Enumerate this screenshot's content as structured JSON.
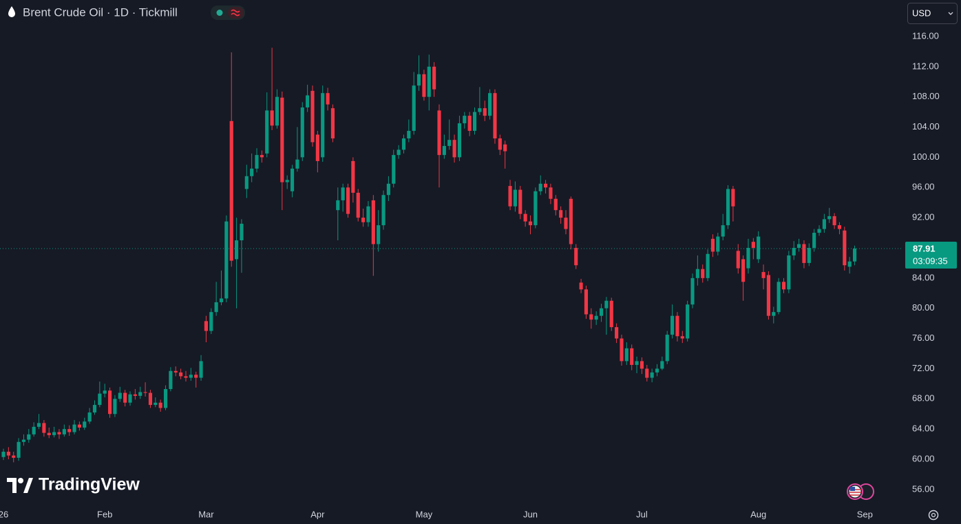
{
  "header": {
    "title": "Brent Crude Oil · 1D · Tickmill",
    "currency": "USD"
  },
  "brand": "TradingView",
  "chart_data": {
    "type": "candlestick",
    "open": [
      60.3,
      61.0,
      60.5,
      60.2,
      62.3,
      62.6,
      63.3,
      64.3,
      64.8,
      63.5,
      63.2,
      63.6,
      63.3,
      64.0,
      63.6,
      64.6,
      64.2,
      65.0,
      66.2,
      67.2,
      68.7,
      69.1,
      66.0,
      68.0,
      68.8,
      67.5,
      68.6,
      68.4,
      68.9,
      68.8,
      67.2,
      67.5,
      66.8,
      69.3,
      71.7,
      71.5,
      71.0,
      70.8,
      71.2,
      70.8,
      78.3,
      77.0,
      79.5,
      80.8,
      81.3,
      104.8,
      86.5,
      89.0,
      95.8,
      97.5,
      98.5,
      100.3,
      100.5,
      106.2,
      104.2,
      107.9,
      96.7,
      95.5,
      98.5,
      100.0,
      106.6,
      108.8,
      103.0,
      100.0,
      108.5,
      106.5,
      93.0,
      94.3,
      96.0,
      99.5,
      95.3,
      92.0,
      91.4,
      94.3,
      88.5,
      91.0,
      95.0,
      96.5,
      100.3,
      101.0,
      102.5,
      103.5,
      109.5,
      111.0,
      108.0,
      112.0,
      106.2,
      100.3,
      101.5,
      102.3,
      100.0,
      104.5,
      105.5,
      103.5,
      106.0,
      106.5,
      105.5,
      108.5,
      102.5,
      101.7,
      96.2,
      93.5,
      95.7,
      92.5,
      91.5,
      91.0,
      95.5,
      96.5,
      96.0,
      94.5,
      93.0,
      92.0,
      94.5,
      88.0,
      83.4,
      82.5,
      79.2,
      78.5,
      79.0,
      80.0,
      81.0,
      77.5,
      76.0,
      73.0,
      74.7,
      72.5,
      73.0,
      72.0,
      70.8,
      71.5,
      72.0,
      73.0,
      76.5,
      79.0,
      76.3,
      76.0,
      80.5,
      84.0,
      85.2,
      84.0,
      89.2,
      87.5,
      89.5,
      91.0,
      95.8,
      87.6,
      86.5,
      85.3,
      88.8,
      86.5,
      84.8,
      84.4,
      79.0,
      79.5,
      83.5,
      82.5,
      87.0,
      88.0,
      88.5,
      86.0,
      88.0,
      90.0,
      90.5,
      91.8,
      92.2,
      91.0,
      90.3,
      85.5,
      86.2
    ],
    "high": [
      61.4,
      61.6,
      61.0,
      62.8,
      63.3,
      64.0,
      64.9,
      66.0,
      65.2,
      64.2,
      64.3,
      64.0,
      64.6,
      64.5,
      65.2,
      65.0,
      65.5,
      66.8,
      67.8,
      70.3,
      70.0,
      69.5,
      68.5,
      69.6,
      69.2,
      69.0,
      69.3,
      69.6,
      70.2,
      69.2,
      68.2,
      67.9,
      69.8,
      72.2,
      72.3,
      72.0,
      71.7,
      72.1,
      71.6,
      73.8,
      79.0,
      80.0,
      83.5,
      85.0,
      92.3,
      113.9,
      92.0,
      91.8,
      99.0,
      100.5,
      101.2,
      100.9,
      108.6,
      114.5,
      109.0,
      108.7,
      97.6,
      99.0,
      104.0,
      107.3,
      109.6,
      109.5,
      103.5,
      109.5,
      109.2,
      107.0,
      96.0,
      96.5,
      96.5,
      100.0,
      95.8,
      93.2,
      94.2,
      95.0,
      93.0,
      95.6,
      97.5,
      101.0,
      101.6,
      103.0,
      105.0,
      111.3,
      113.5,
      111.6,
      113.6,
      112.6,
      107.0,
      103.0,
      105.0,
      103.0,
      105.5,
      106.0,
      106.0,
      106.6,
      109.3,
      107.5,
      109.0,
      109.0,
      103.0,
      102.2,
      97.0,
      96.8,
      96.2,
      93.0,
      92.3,
      96.0,
      97.6,
      97.0,
      96.5,
      95.0,
      93.5,
      93.0,
      94.8,
      88.5,
      83.9,
      83.0,
      80.0,
      79.6,
      80.6,
      81.5,
      81.4,
      78.0,
      76.5,
      75.5,
      75.2,
      73.6,
      73.5,
      72.5,
      72.0,
      72.6,
      73.6,
      77.0,
      80.5,
      79.5,
      77.0,
      81.0,
      84.6,
      87.0,
      85.8,
      87.8,
      89.8,
      90.0,
      92.5,
      96.3,
      96.2,
      88.5,
      87.0,
      89.2,
      89.3,
      90.2,
      85.8,
      84.9,
      80.2,
      84.0,
      84.0,
      87.6,
      88.9,
      89.2,
      89.0,
      88.6,
      90.5,
      91.0,
      92.5,
      93.3,
      92.6,
      91.4,
      90.8,
      86.8,
      88.3
    ],
    "low": [
      59.9,
      60.0,
      59.6,
      59.8,
      61.8,
      62.2,
      63.0,
      64.0,
      63.0,
      62.8,
      62.9,
      62.7,
      63.0,
      63.1,
      63.3,
      63.8,
      63.9,
      64.7,
      65.9,
      66.9,
      68.2,
      65.5,
      65.6,
      67.6,
      67.0,
      67.1,
      67.9,
      68.0,
      68.3,
      66.8,
      66.9,
      66.3,
      66.5,
      69.0,
      71.0,
      70.6,
      70.3,
      70.4,
      69.5,
      70.4,
      75.5,
      76.6,
      79.0,
      80.4,
      80.8,
      85.5,
      80.0,
      84.7,
      94.6,
      96.7,
      98.0,
      99.3,
      100.0,
      103.6,
      103.8,
      93.0,
      95.8,
      94.7,
      98.1,
      99.5,
      106.0,
      101.4,
      98.0,
      99.4,
      106.2,
      102.0,
      89.0,
      92.8,
      92.0,
      94.0,
      91.5,
      90.8,
      90.8,
      84.3,
      87.5,
      90.4,
      94.2,
      96.0,
      99.8,
      100.5,
      102.0,
      103.0,
      108.8,
      107.5,
      106.2,
      108.0,
      96.0,
      99.8,
      101.0,
      99.3,
      99.5,
      103.8,
      102.8,
      103.0,
      105.6,
      104.8,
      105.0,
      101.8,
      100.3,
      98.5,
      93.0,
      92.8,
      91.8,
      90.8,
      89.8,
      90.6,
      95.0,
      95.2,
      93.8,
      92.3,
      91.2,
      89.8,
      87.8,
      85.2,
      82.0,
      78.6,
      77.3,
      77.8,
      78.2,
      76.5,
      77.0,
      75.4,
      72.4,
      72.5,
      71.8,
      71.4,
      71.3,
      70.3,
      70.2,
      71.0,
      71.8,
      72.6,
      76.0,
      75.6,
      75.4,
      75.6,
      80.0,
      83.0,
      83.4,
      83.6,
      86.8,
      87.0,
      89.0,
      90.5,
      91.5,
      84.6,
      81.0,
      84.6,
      86.5,
      86.0,
      82.5,
      78.5,
      78.0,
      79.2,
      82.0,
      82.0,
      86.4,
      87.5,
      85.3,
      85.6,
      87.5,
      89.6,
      90.0,
      91.3,
      90.5,
      89.8,
      85.0,
      84.6,
      85.7
    ],
    "close": [
      61.0,
      60.5,
      60.2,
      62.3,
      62.6,
      63.3,
      64.3,
      64.8,
      63.5,
      63.2,
      63.6,
      63.3,
      64.0,
      63.6,
      64.6,
      64.2,
      65.0,
      66.2,
      67.2,
      68.7,
      69.1,
      66.0,
      68.0,
      68.8,
      67.5,
      68.6,
      68.4,
      68.9,
      68.8,
      67.2,
      67.5,
      66.8,
      69.3,
      71.7,
      71.5,
      71.0,
      70.8,
      71.2,
      70.8,
      73.0,
      77.0,
      79.5,
      80.8,
      81.3,
      91.5,
      86.3,
      89.0,
      91.2,
      97.5,
      98.5,
      100.3,
      100.0,
      106.2,
      104.2,
      108.0,
      96.7,
      97.0,
      98.5,
      99.7,
      106.6,
      108.2,
      102.0,
      99.5,
      108.5,
      107.0,
      102.5,
      94.3,
      96.0,
      92.5,
      95.3,
      92.0,
      91.4,
      93.5,
      88.5,
      91.0,
      95.0,
      96.5,
      100.3,
      101.0,
      102.5,
      103.5,
      109.5,
      111.0,
      108.0,
      112.0,
      109.0,
      100.3,
      101.5,
      102.3,
      100.0,
      104.5,
      105.5,
      103.5,
      106.0,
      106.5,
      105.5,
      108.5,
      102.5,
      101.0,
      100.8,
      93.5,
      95.7,
      92.5,
      91.5,
      91.0,
      95.5,
      96.5,
      96.0,
      94.5,
      93.0,
      92.0,
      90.5,
      88.5,
      85.7,
      82.5,
      79.2,
      78.5,
      79.0,
      80.0,
      81.0,
      77.5,
      76.0,
      73.0,
      74.7,
      72.5,
      73.0,
      72.0,
      70.8,
      71.5,
      72.0,
      73.0,
      76.5,
      79.0,
      76.3,
      76.0,
      80.5,
      84.0,
      85.2,
      84.0,
      87.2,
      87.5,
      89.5,
      91.0,
      95.8,
      93.5,
      85.3,
      83.5,
      88.0,
      88.0,
      89.5,
      84.0,
      79.0,
      79.5,
      83.5,
      82.5,
      87.0,
      88.0,
      88.5,
      86.0,
      88.0,
      90.0,
      90.5,
      91.8,
      92.2,
      91.0,
      90.5,
      85.7,
      86.2,
      87.91
    ],
    "up_color": "#089981",
    "down_color": "#f23645",
    "ylim": [
      53.8,
      120.83
    ],
    "yticks": [
      {
        "value": 56,
        "label": "56.00"
      },
      {
        "value": 60,
        "label": "60.00"
      },
      {
        "value": 64,
        "label": "64.00"
      },
      {
        "value": 68,
        "label": "68.00"
      },
      {
        "value": 72,
        "label": "72.00"
      },
      {
        "value": 76,
        "label": "76.00"
      },
      {
        "value": 80,
        "label": "80.00"
      },
      {
        "value": 84,
        "label": "84.00"
      },
      {
        "value": 88,
        "label": "88.00"
      },
      {
        "value": 92,
        "label": "92.00"
      },
      {
        "value": 96,
        "label": "96.00"
      },
      {
        "value": 100,
        "label": "100.00"
      },
      {
        "value": 104,
        "label": "104.00"
      },
      {
        "value": 108,
        "label": "108.00"
      },
      {
        "value": 112,
        "label": "112.00"
      },
      {
        "value": 116,
        "label": "116.00"
      }
    ],
    "xlim": [
      -0.68,
      177.3
    ],
    "xticks": [
      {
        "value": 0,
        "label": "26"
      },
      {
        "value": 20,
        "label": "Feb"
      },
      {
        "value": 40,
        "label": "Mar"
      },
      {
        "value": 62,
        "label": "Apr"
      },
      {
        "value": 83,
        "label": "May"
      },
      {
        "value": 104,
        "label": "Jun"
      },
      {
        "value": 126,
        "label": "Jul"
      },
      {
        "value": 149,
        "label": "Aug"
      },
      {
        "value": 170,
        "label": "Sep"
      }
    ],
    "last_price": 87.91,
    "countdown": "03:09:35"
  }
}
